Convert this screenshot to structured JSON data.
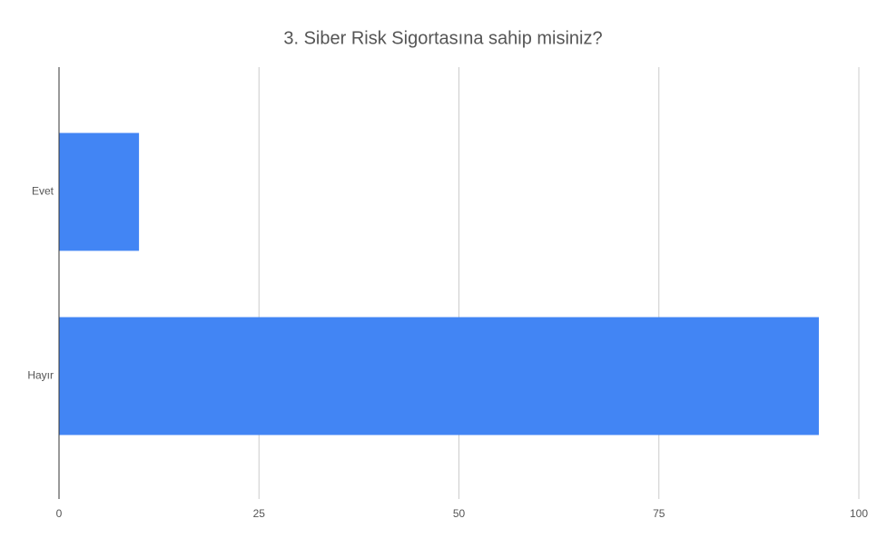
{
  "chart_data": {
    "type": "hbar",
    "title": "3. Siber Risk Sigortasına sahip misiniz?",
    "categories": [
      "Evet",
      "Hayır"
    ],
    "values": [
      10,
      95
    ],
    "color": "#4285f4",
    "xlim": [
      0,
      100
    ],
    "xticks": [
      0,
      25,
      50,
      75,
      100
    ],
    "grid": true
  }
}
